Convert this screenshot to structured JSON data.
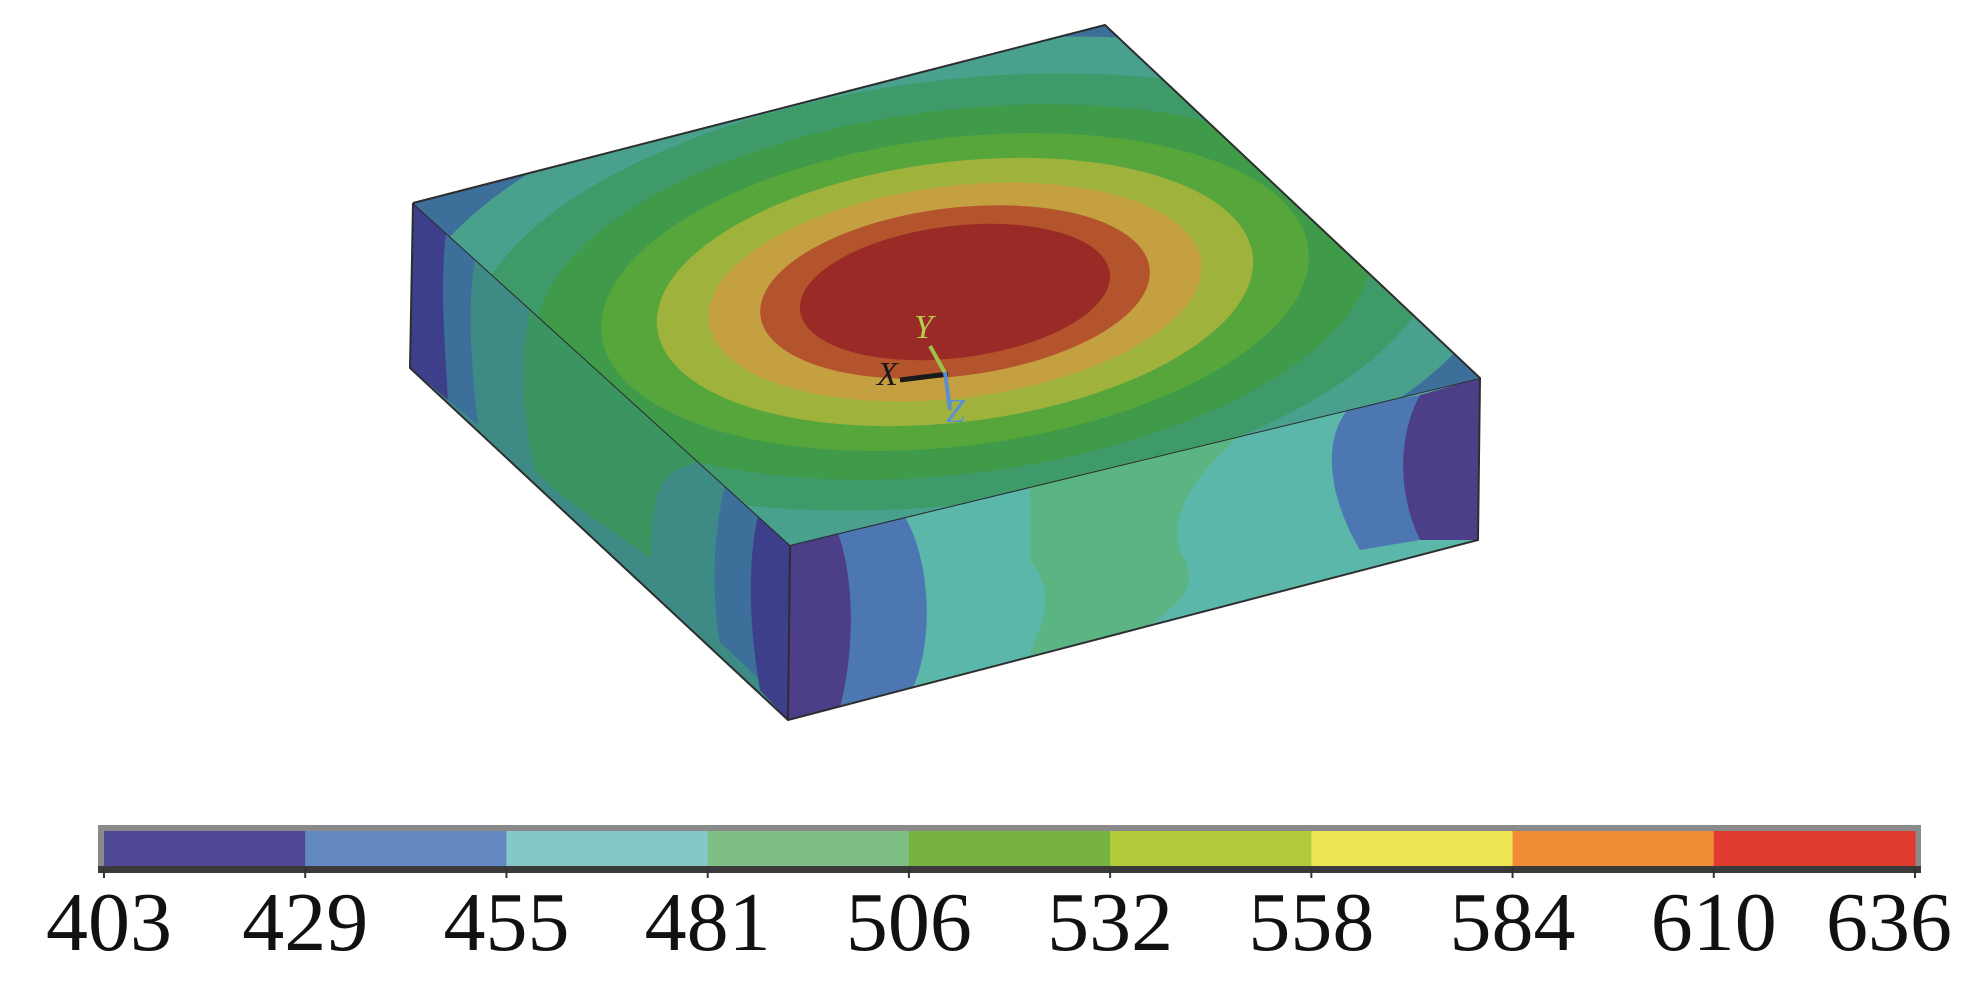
{
  "triad": {
    "x_label": "X",
    "y_label": "Y",
    "z_label": "Z"
  },
  "colorbar": {
    "ticks": [
      "403",
      "429",
      "455",
      "481",
      "506",
      "532",
      "558",
      "584",
      "610",
      "636"
    ],
    "bands": [
      "#4f4896",
      "#6489c1",
      "#86c8c8",
      "#7fbe84",
      "#77b43f",
      "#b2cb3a",
      "#ede552",
      "#ef8c35",
      "#e13a2e"
    ]
  },
  "contour": {
    "levels_inner_to_outer": [
      "#9a2a25",
      "#b4542c",
      "#c4a040",
      "#9fb33c",
      "#57a63b",
      "#3f9b4a",
      "#3f9a6a",
      "#48a08d",
      "#3d6f9b",
      "#3e3f8a"
    ]
  }
}
